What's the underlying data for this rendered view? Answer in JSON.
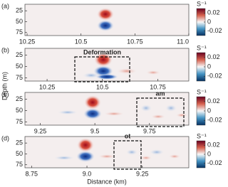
{
  "chart_data": [
    {
      "type": "heatmap",
      "panel_label": "(a)",
      "xlim": [
        10.24,
        11.0
      ],
      "xticks": [
        10.25,
        10.5,
        10.75,
        {
          "value": 11,
          "label": "11.0"
        }
      ],
      "ylim": [
        10,
        82
      ],
      "y_inverted": true,
      "yticks": [
        25,
        50,
        75
      ],
      "clim": [
        -0.03,
        0.03
      ],
      "cticks": [
        0.02,
        0,
        -0.02
      ],
      "colorbar_label": "S⁻¹"
    },
    {
      "type": "heatmap",
      "panel_label": "(b)",
      "xlim": [
        10.15,
        10.89
      ],
      "xticks": [
        10.25,
        10.5,
        10.75
      ],
      "ylim": [
        10,
        82
      ],
      "y_inverted": true,
      "yticks": [
        25,
        50,
        75
      ],
      "clim": [
        -0.03,
        0.03
      ],
      "cticks": [
        0.02,
        0,
        -0.02
      ],
      "colorbar_label": "S⁻¹",
      "annotation": "Deformation",
      "ylabel": "Depth (m)"
    },
    {
      "type": "heatmap",
      "panel_label": "(c)",
      "xlim": [
        9.18,
        9.93
      ],
      "xticks": [
        9.25,
        9.5,
        9.75
      ],
      "ylim": [
        10,
        82
      ],
      "y_inverted": true,
      "yticks": [
        25,
        50,
        75
      ],
      "clim": [
        -0.03,
        0.03
      ],
      "cticks": [
        0.02,
        0,
        -0.02
      ],
      "colorbar_label": "S⁻¹",
      "annotation": "am"
    },
    {
      "type": "heatmap",
      "panel_label": "(d)",
      "xlim": [
        8.72,
        9.46
      ],
      "xticks": [
        8.75,
        {
          "value": 9,
          "label": "9.0"
        },
        9.25
      ],
      "ylim": [
        10,
        82
      ],
      "y_inverted": true,
      "yticks": [
        25,
        50,
        75
      ],
      "clim": [
        -0.03,
        0.03
      ],
      "cticks": [
        0.02,
        0,
        -0.02
      ],
      "colorbar_label": "S⁻¹",
      "annotation": "ot",
      "xlabel": "Distance (km)"
    }
  ]
}
